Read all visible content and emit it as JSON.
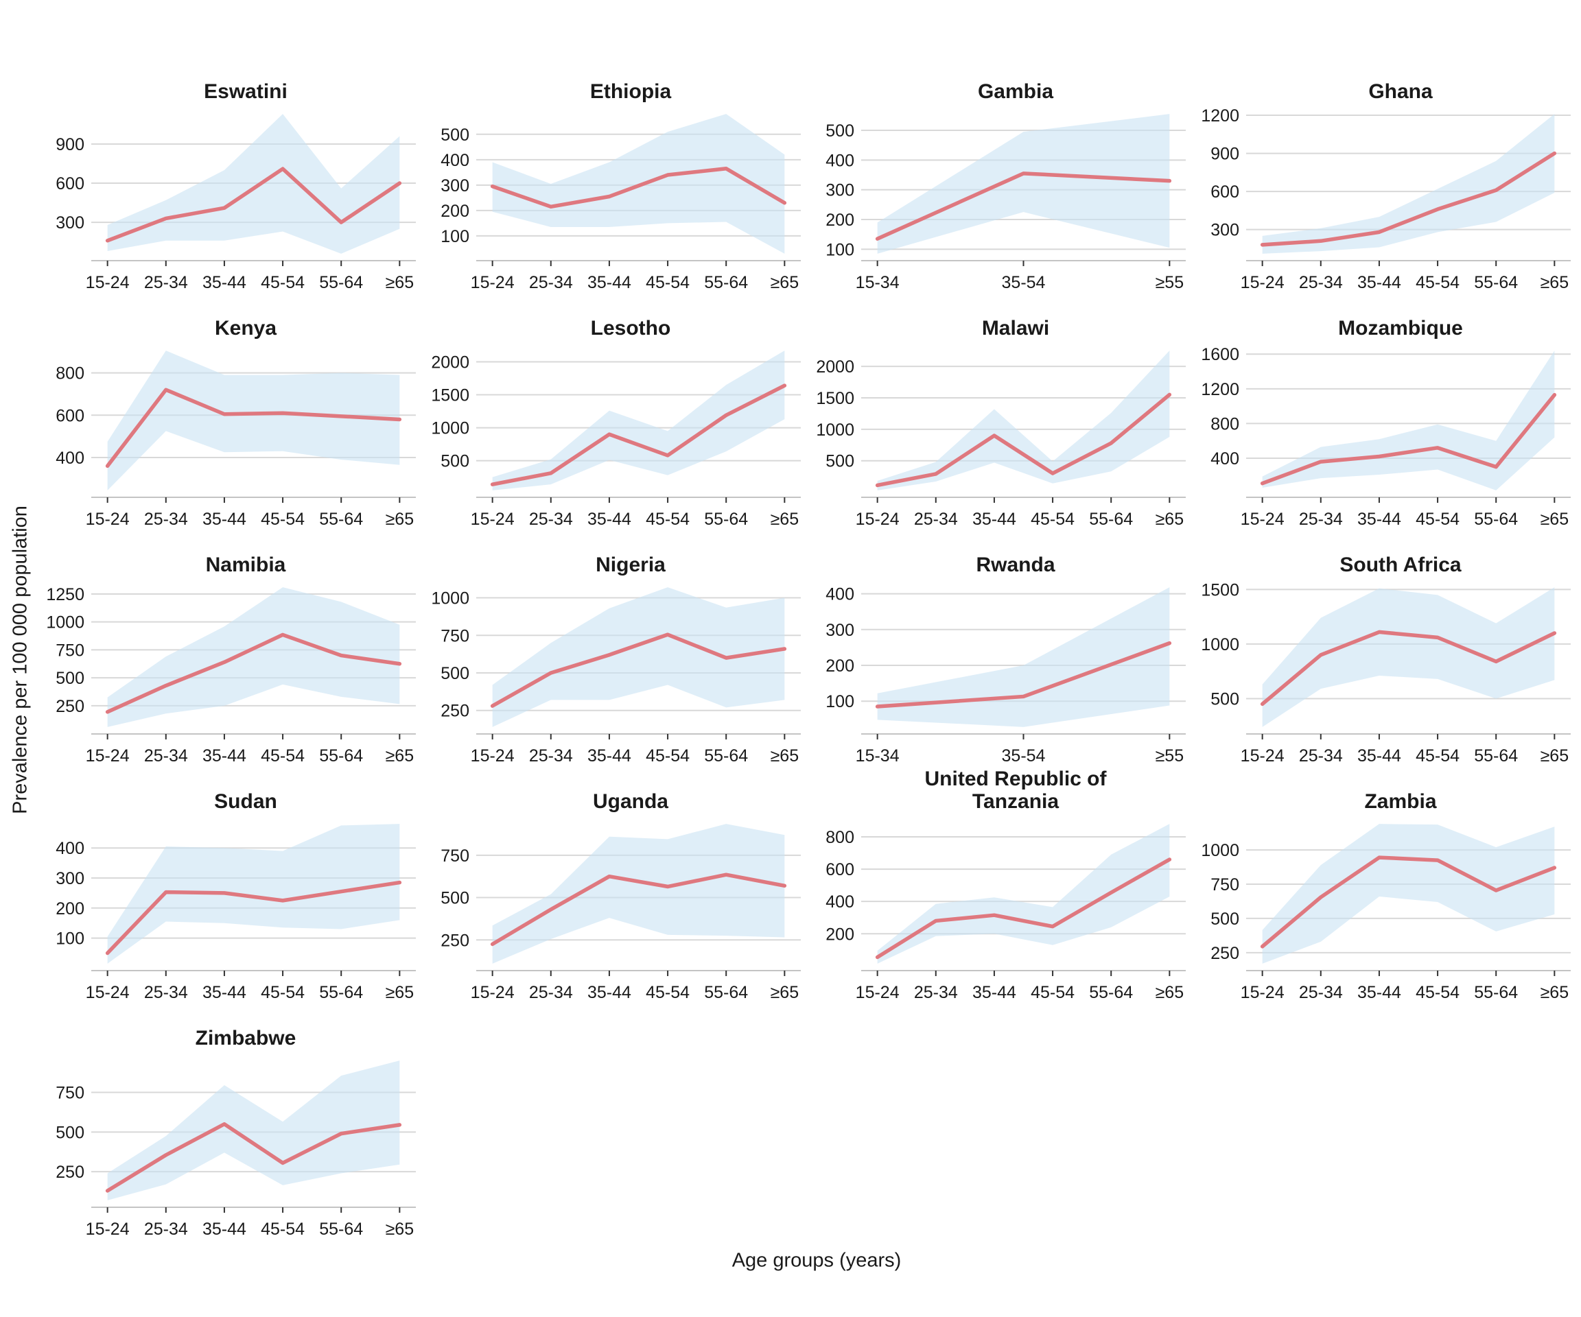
{
  "figure": {
    "ylabel": "Prevalence per 100 000 population",
    "xlabel": "Age groups (years)"
  },
  "colors": {
    "line": "#DF787F",
    "band": "#C9E3F4",
    "band_opacity": 0.6,
    "grid": "#D8D8D8",
    "axis": "#C4C4C4",
    "tick": "#333333",
    "text": "#1A1A1A"
  },
  "chart_data": [
    {
      "type": "line",
      "title": "Eswatini",
      "categories": [
        "15-24",
        "25-34",
        "35-44",
        "45-54",
        "55-64",
        "≥65"
      ],
      "values": [
        160,
        330,
        410,
        710,
        300,
        600
      ],
      "band_lower": [
        80,
        160,
        160,
        230,
        60,
        250
      ],
      "band_upper": [
        280,
        470,
        700,
        1130,
        560,
        960
      ],
      "yticks": [
        300,
        600,
        900
      ]
    },
    {
      "type": "line",
      "title": "Ethiopia",
      "categories": [
        "15-24",
        "25-34",
        "35-44",
        "45-54",
        "55-64",
        "≥65"
      ],
      "values": [
        295,
        215,
        255,
        340,
        365,
        230
      ],
      "band_lower": [
        195,
        135,
        135,
        150,
        155,
        30
      ],
      "band_upper": [
        390,
        305,
        390,
        510,
        580,
        420
      ],
      "yticks": [
        100,
        200,
        300,
        400,
        500
      ]
    },
    {
      "type": "line",
      "title": "Gambia",
      "categories": [
        "15-34",
        "35-54",
        "≥55"
      ],
      "values": [
        135,
        355,
        330
      ],
      "band_lower": [
        85,
        225,
        105
      ],
      "band_upper": [
        190,
        495,
        555
      ],
      "yticks": [
        100,
        200,
        300,
        400,
        500
      ]
    },
    {
      "type": "line",
      "title": "Ghana",
      "categories": [
        "15-24",
        "25-34",
        "35-44",
        "45-54",
        "55-64",
        "≥65"
      ],
      "values": [
        180,
        210,
        280,
        460,
        610,
        900
      ],
      "band_lower": [
        110,
        130,
        160,
        280,
        360,
        590
      ],
      "band_upper": [
        250,
        310,
        400,
        620,
        840,
        1210
      ],
      "yticks": [
        300,
        600,
        900,
        1200
      ]
    },
    {
      "type": "line",
      "title": "Kenya",
      "categories": [
        "15-24",
        "25-34",
        "35-44",
        "45-54",
        "55-64",
        "≥65"
      ],
      "values": [
        360,
        720,
        605,
        610,
        595,
        580
      ],
      "band_lower": [
        245,
        525,
        425,
        430,
        390,
        365
      ],
      "band_upper": [
        475,
        905,
        790,
        790,
        800,
        790
      ],
      "yticks": [
        400,
        600,
        800
      ]
    },
    {
      "type": "line",
      "title": "Lesotho",
      "categories": [
        "15-24",
        "25-34",
        "35-44",
        "45-54",
        "55-64",
        "≥65"
      ],
      "values": [
        140,
        310,
        900,
        580,
        1190,
        1640
      ],
      "band_lower": [
        50,
        140,
        510,
        280,
        640,
        1130
      ],
      "band_upper": [
        250,
        520,
        1260,
        950,
        1650,
        2170
      ],
      "yticks": [
        500,
        1000,
        1500,
        2000
      ]
    },
    {
      "type": "line",
      "title": "Malawi",
      "categories": [
        "15-24",
        "25-34",
        "35-44",
        "45-54",
        "55-64",
        "≥65"
      ],
      "values": [
        110,
        290,
        900,
        300,
        780,
        1550
      ],
      "band_lower": [
        30,
        170,
        470,
        140,
        330,
        880
      ],
      "band_upper": [
        180,
        480,
        1320,
        490,
        1260,
        2250
      ],
      "yticks": [
        500,
        1000,
        1500,
        2000
      ]
    },
    {
      "type": "line",
      "title": "Mozambique",
      "categories": [
        "15-24",
        "25-34",
        "35-44",
        "45-54",
        "55-64",
        "≥65"
      ],
      "values": [
        110,
        360,
        420,
        520,
        300,
        1130
      ],
      "band_lower": [
        60,
        170,
        210,
        270,
        30,
        640
      ],
      "band_upper": [
        190,
        530,
        620,
        790,
        600,
        1640
      ],
      "yticks": [
        400,
        800,
        1200,
        1600
      ]
    },
    {
      "type": "line",
      "title": "Namibia",
      "categories": [
        "15-24",
        "25-34",
        "35-44",
        "45-54",
        "55-64",
        "≥65"
      ],
      "values": [
        195,
        430,
        640,
        885,
        700,
        625
      ],
      "band_lower": [
        60,
        180,
        250,
        440,
        330,
        265
      ],
      "band_upper": [
        325,
        690,
        960,
        1310,
        1180,
        975
      ],
      "yticks": [
        250,
        500,
        750,
        1000,
        1250
      ]
    },
    {
      "type": "line",
      "title": "Nigeria",
      "categories": [
        "15-24",
        "25-34",
        "35-44",
        "45-54",
        "55-64",
        "≥65"
      ],
      "values": [
        280,
        500,
        620,
        755,
        600,
        660
      ],
      "band_lower": [
        140,
        320,
        320,
        420,
        270,
        320
      ],
      "band_upper": [
        420,
        700,
        930,
        1070,
        935,
        1000
      ],
      "yticks": [
        250,
        500,
        750,
        1000
      ]
    },
    {
      "type": "line",
      "title": "Rwanda",
      "categories": [
        "15-34",
        "35-54",
        "≥55"
      ],
      "values": [
        85,
        113,
        262
      ],
      "band_lower": [
        48,
        28,
        88
      ],
      "band_upper": [
        122,
        200,
        418
      ],
      "yticks": [
        100,
        200,
        300,
        400
      ]
    },
    {
      "type": "line",
      "title": "South Africa",
      "categories": [
        "15-24",
        "25-34",
        "35-44",
        "45-54",
        "55-64",
        "≥65"
      ],
      "values": [
        450,
        900,
        1110,
        1060,
        840,
        1100
      ],
      "band_lower": [
        240,
        590,
        710,
        680,
        500,
        670
      ],
      "band_upper": [
        630,
        1240,
        1510,
        1450,
        1190,
        1520
      ],
      "yticks": [
        500,
        1000,
        1500
      ]
    },
    {
      "type": "line",
      "title": "Sudan",
      "categories": [
        "15-24",
        "25-34",
        "35-44",
        "45-54",
        "55-64",
        "≥65"
      ],
      "values": [
        50,
        253,
        250,
        225,
        255,
        285
      ],
      "band_lower": [
        15,
        155,
        150,
        135,
        130,
        160
      ],
      "band_upper": [
        105,
        405,
        400,
        390,
        475,
        480
      ],
      "yticks": [
        100,
        200,
        300,
        400
      ]
    },
    {
      "type": "line",
      "title": "Uganda",
      "categories": [
        "15-24",
        "25-34",
        "35-44",
        "45-54",
        "55-64",
        "≥65"
      ],
      "values": [
        225,
        430,
        625,
        565,
        635,
        570
      ],
      "band_lower": [
        110,
        255,
        380,
        280,
        275,
        265
      ],
      "band_upper": [
        335,
        520,
        860,
        845,
        935,
        870
      ],
      "yticks": [
        250,
        500,
        750
      ]
    },
    {
      "type": "line",
      "title": "United Republic of Tanzania",
      "categories": [
        "15-24",
        "25-34",
        "35-44",
        "45-54",
        "55-64",
        "≥65"
      ],
      "values": [
        55,
        280,
        315,
        245,
        455,
        660
      ],
      "band_lower": [
        15,
        185,
        200,
        130,
        240,
        430
      ],
      "band_upper": [
        95,
        385,
        425,
        365,
        690,
        880
      ],
      "yticks": [
        200,
        400,
        600,
        800
      ]
    },
    {
      "type": "line",
      "title": "Zambia",
      "categories": [
        "15-24",
        "25-34",
        "35-44",
        "45-54",
        "55-64",
        "≥65"
      ],
      "values": [
        295,
        655,
        945,
        925,
        705,
        870
      ],
      "band_lower": [
        170,
        330,
        660,
        620,
        405,
        530
      ],
      "band_upper": [
        415,
        890,
        1190,
        1185,
        1020,
        1170
      ],
      "yticks": [
        250,
        500,
        750,
        1000
      ]
    },
    {
      "type": "line",
      "title": "Zimbabwe",
      "categories": [
        "15-24",
        "25-34",
        "35-44",
        "45-54",
        "55-64",
        "≥65"
      ],
      "values": [
        130,
        355,
        550,
        305,
        490,
        545
      ],
      "band_lower": [
        70,
        170,
        370,
        165,
        240,
        295
      ],
      "band_upper": [
        240,
        475,
        795,
        565,
        855,
        950
      ],
      "yticks": [
        250,
        500,
        750
      ]
    }
  ]
}
